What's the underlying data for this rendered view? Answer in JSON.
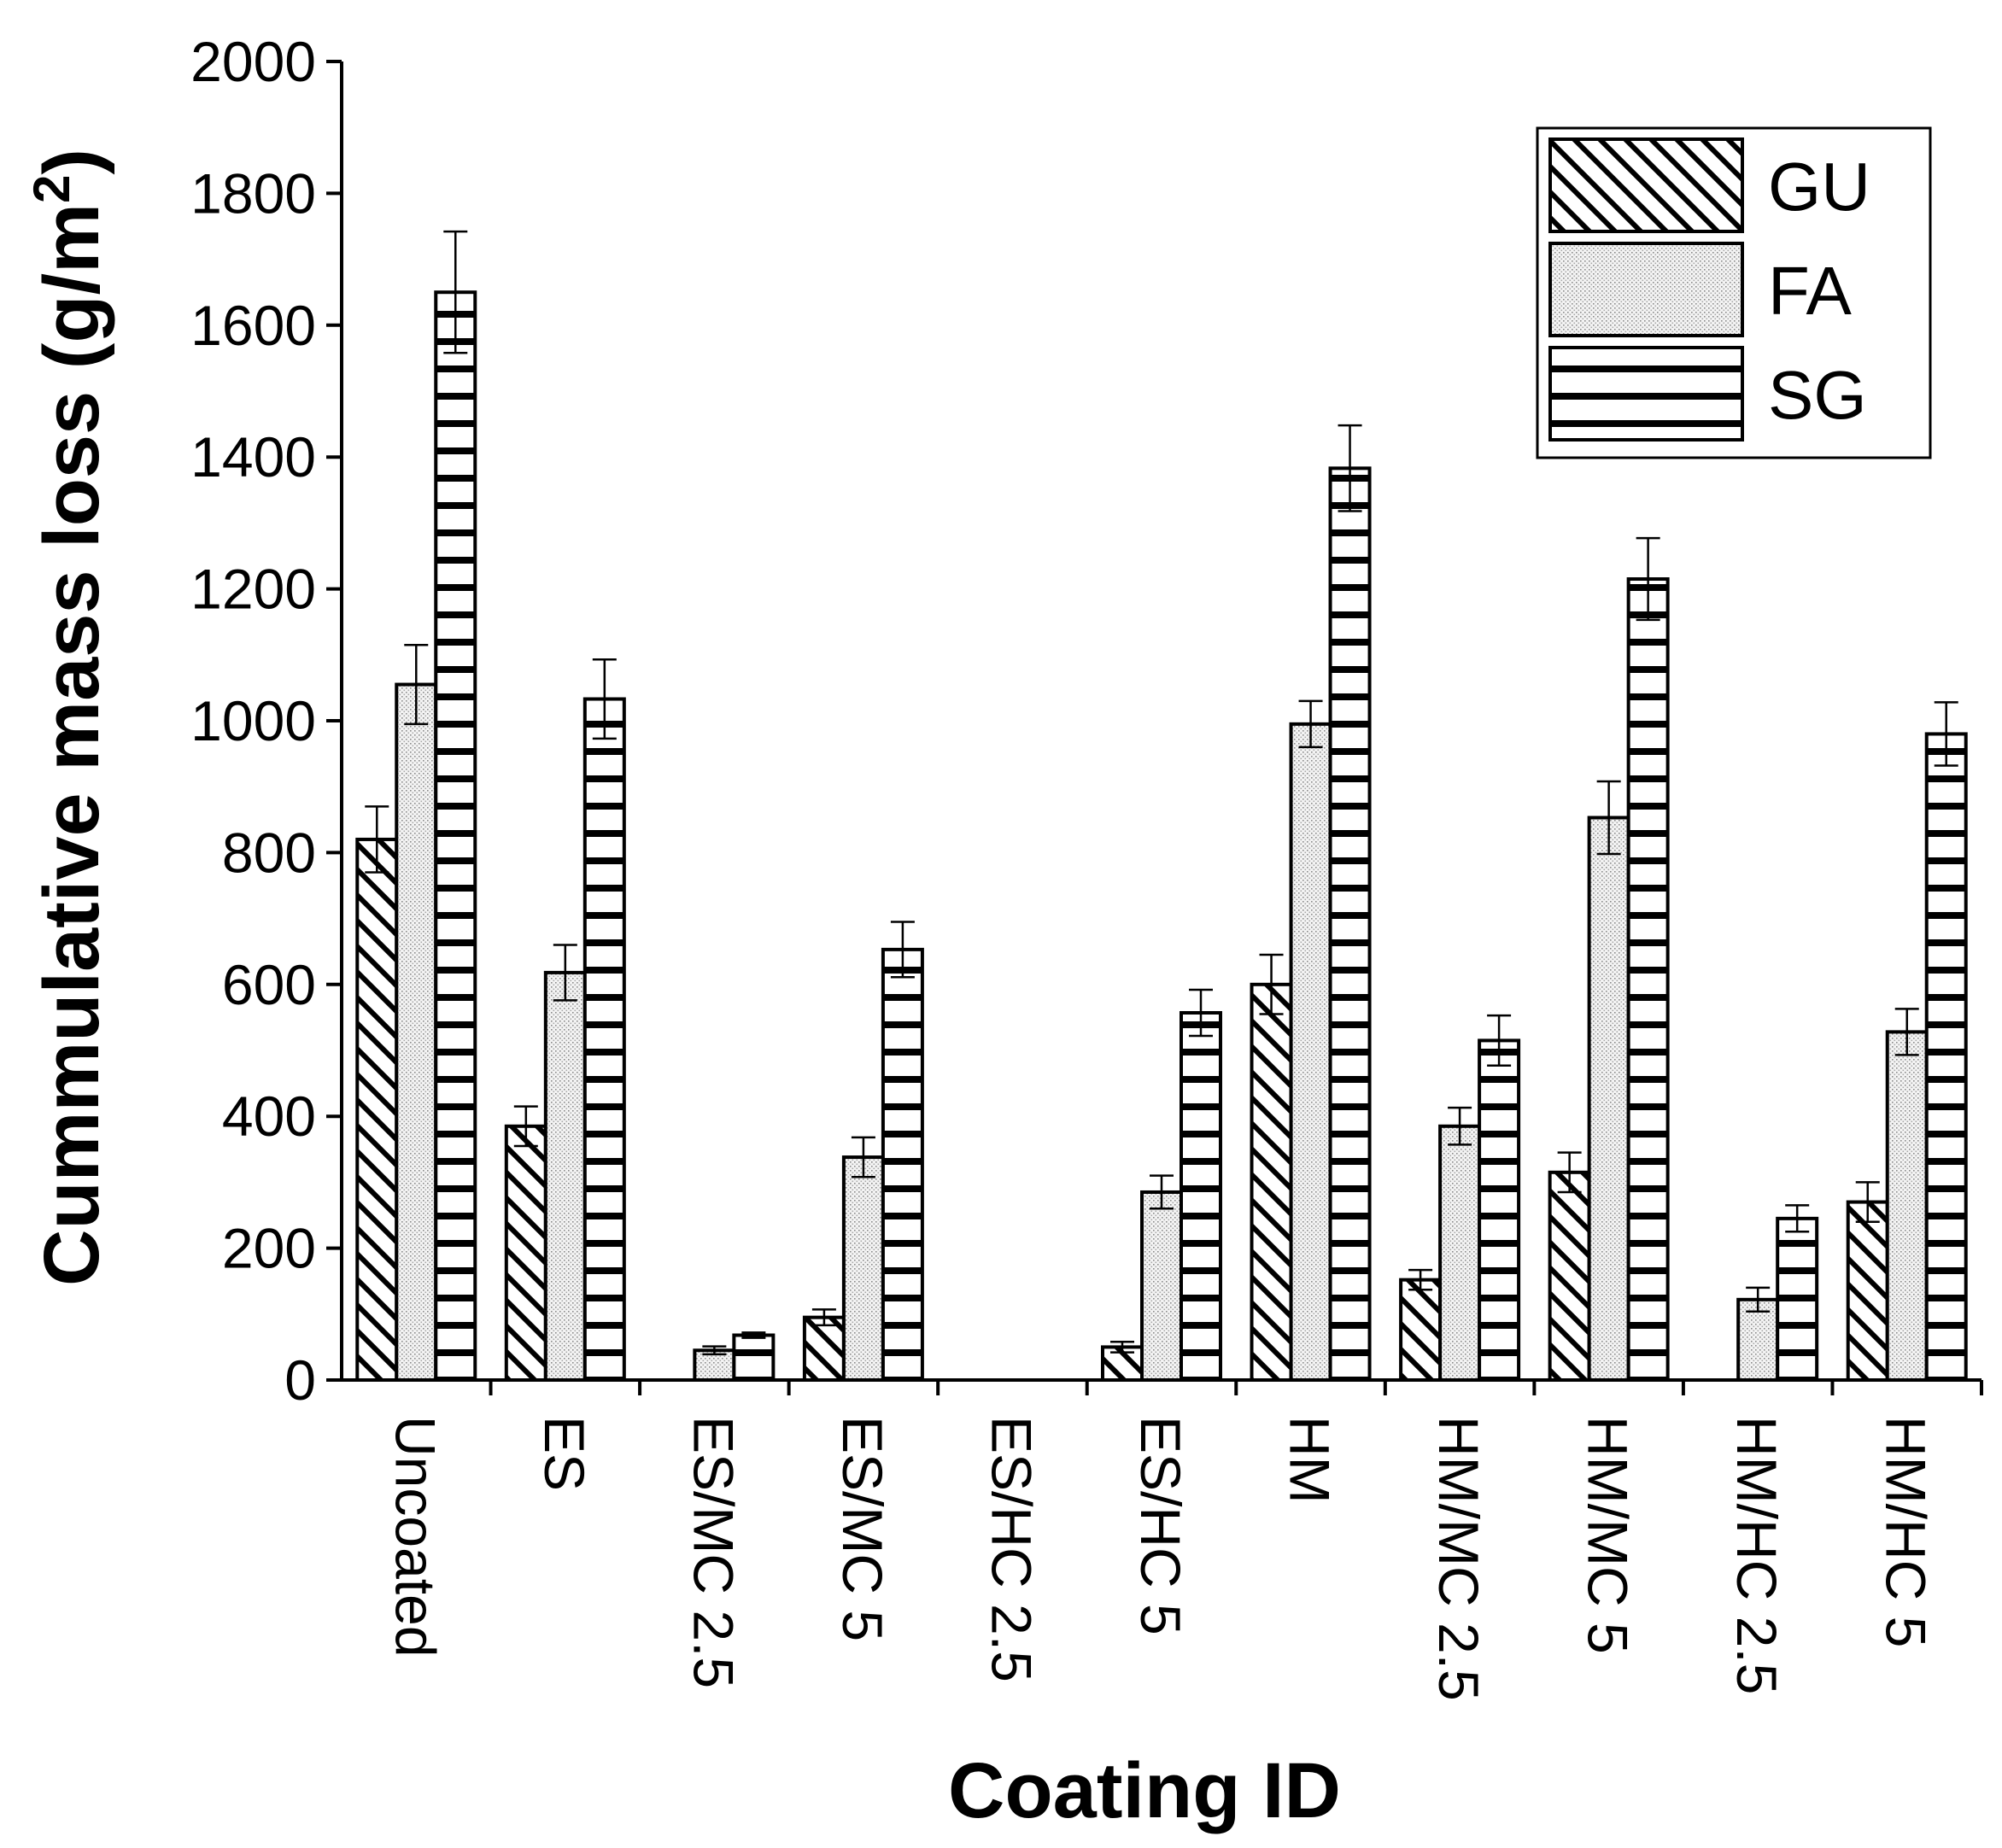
{
  "chart_data": {
    "type": "bar",
    "xlabel": "Coating ID",
    "ylabel": "Cummulative mass loss (g/m",
    "ylabel_sup": "2",
    "ylabel_close": ")",
    "ylim": [
      0,
      2000
    ],
    "yticks": [
      "0",
      "200",
      "400",
      "600",
      "800",
      "1000",
      "1200",
      "1400",
      "1600",
      "1800",
      "2000"
    ],
    "ytick_values": [
      0,
      200,
      400,
      600,
      800,
      1000,
      1200,
      1400,
      1600,
      1800,
      2000
    ],
    "legend_position": "top-right",
    "categories": [
      "Uncoated",
      "ES",
      "ES/MC 2.5",
      "ES/MC 5",
      "ES/HC 2.5",
      "ES/HC 5",
      "HM",
      "HM/MC 2.5",
      "HM/MC 5",
      "HM/HC 2.5",
      "HM/HC 5"
    ],
    "series": [
      {
        "name": "GU",
        "pattern": "diagonal",
        "values": [
          820,
          385,
          0,
          95,
          0,
          50,
          600,
          152,
          315,
          0,
          270
        ],
        "errors": [
          50,
          30,
          0,
          12,
          0,
          8,
          45,
          15,
          30,
          0,
          30
        ]
      },
      {
        "name": "FA",
        "pattern": "dotted",
        "values": [
          1055,
          618,
          45,
          338,
          0,
          285,
          995,
          385,
          853,
          122,
          528
        ],
        "errors": [
          60,
          42,
          6,
          30,
          0,
          25,
          35,
          28,
          55,
          18,
          35
        ]
      },
      {
        "name": "SG",
        "pattern": "horizontal",
        "values": [
          1650,
          1033,
          68,
          653,
          0,
          557,
          1383,
          515,
          1215,
          245,
          980
        ],
        "errors": [
          92,
          60,
          4,
          42,
          0,
          35,
          65,
          38,
          62,
          20,
          48
        ]
      }
    ]
  }
}
